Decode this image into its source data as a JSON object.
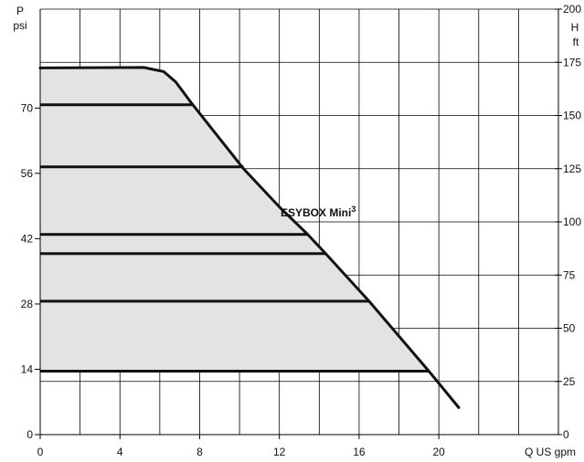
{
  "chart_data": {
    "type": "area",
    "x_axis": {
      "label": "Q US gpm",
      "range": [
        0,
        26
      ],
      "ticks": [
        0,
        4,
        8,
        12,
        16,
        20
      ]
    },
    "y_left": {
      "label_top": "P",
      "label_unit": "psi",
      "range": [
        0,
        91.2
      ],
      "ticks": [
        0,
        14,
        28,
        42,
        56,
        70
      ]
    },
    "y_right": {
      "label_top": "H",
      "label_unit": "ft",
      "range": [
        0,
        200
      ],
      "ticks": [
        0,
        25,
        50,
        75,
        100,
        125,
        150,
        175,
        200
      ]
    },
    "grid": true,
    "curve": {
      "name": "ESYBOX Mini",
      "name_superscript": "3",
      "color": "#111111",
      "fill": "#e3e3e3",
      "points": [
        [
          0,
          78.6
        ],
        [
          5.2,
          78.7
        ],
        [
          6.2,
          77.8
        ],
        [
          6.8,
          75.6
        ],
        [
          7.6,
          71.0
        ],
        [
          10.2,
          57.0
        ],
        [
          12.0,
          48.8
        ],
        [
          13.4,
          43.0
        ],
        [
          14.3,
          38.9
        ],
        [
          16.5,
          28.6
        ],
        [
          19.5,
          13.6
        ],
        [
          21.0,
          5.8
        ]
      ]
    },
    "setpoints": [
      {
        "p": 70.7,
        "q_end": 7.6,
        "color": "#111111"
      },
      {
        "p": 57.4,
        "q_end": 10.2,
        "color": "#111111"
      },
      {
        "p": 42.9,
        "q_end": 13.4,
        "color": "#111111"
      },
      {
        "p": 38.8,
        "q_end": 14.3,
        "color": "#111111"
      },
      {
        "p": 28.6,
        "q_end": 16.5,
        "color": "#111111"
      },
      {
        "p": 13.6,
        "q_end": 19.5,
        "color": "#111111"
      }
    ]
  }
}
